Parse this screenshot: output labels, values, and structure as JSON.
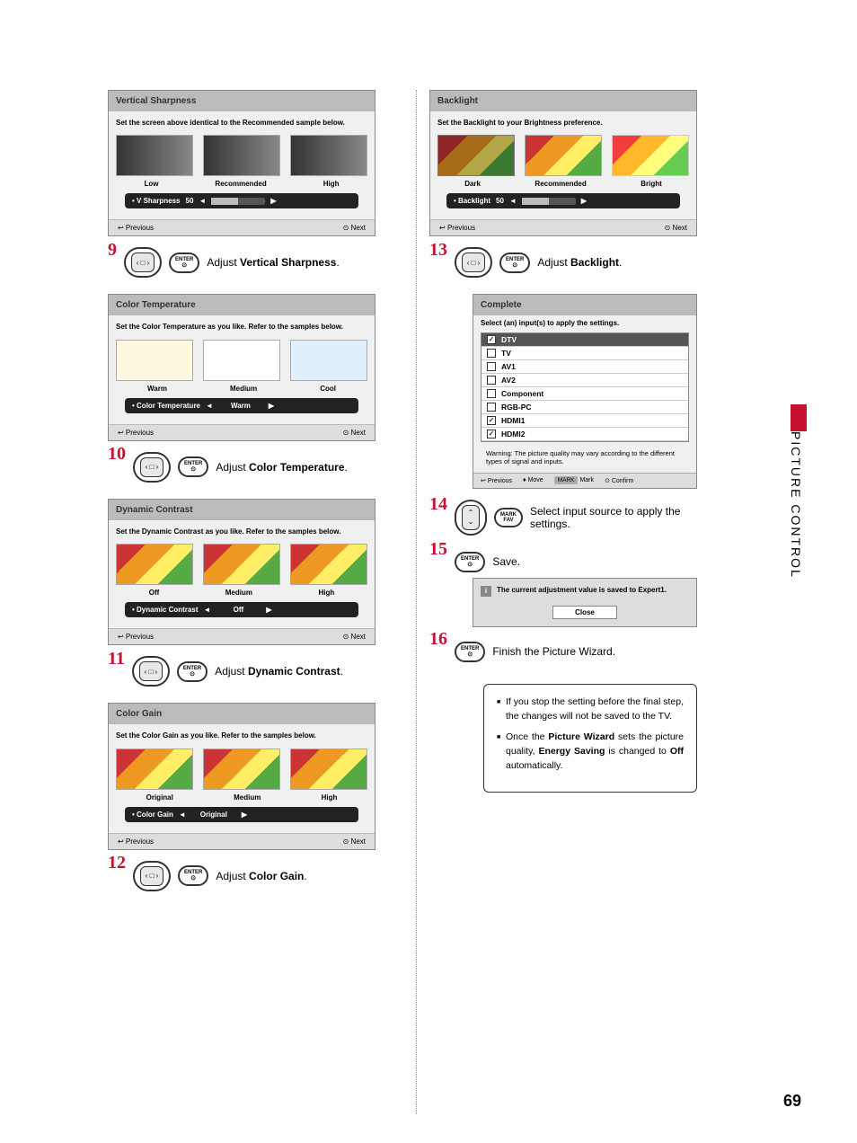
{
  "sideTab": "PICTURE CONTROL",
  "pageNum": "69",
  "leftSteps": [
    {
      "num": "9",
      "panel": {
        "title": "Vertical Sharpness",
        "desc": "Set the screen above identical to the Recommended sample below.",
        "swatchType": "gray",
        "labels": [
          "Low",
          "Recommended",
          "High"
        ],
        "sliderLabel": "• V Sharpness",
        "sliderValue": "50",
        "sliderMode": "bar",
        "footerPrev": "Previous",
        "footerNext": "Next"
      },
      "instruction": {
        "prefix": "Adjust ",
        "bold": "Vertical Sharpness",
        "suffix": "."
      },
      "buttons": [
        "dpad-h",
        "enter"
      ]
    },
    {
      "num": "10",
      "panel": {
        "title": "Color Temperature",
        "desc": "Set the Color Temperature as you like. Refer to the samples below.",
        "swatchType": "temp",
        "labels": [
          "Warm",
          "Medium",
          "Cool"
        ],
        "sliderLabel": "• Color Temperature",
        "sliderValue": "Warm",
        "sliderMode": "value",
        "footerPrev": "Previous",
        "footerNext": "Next"
      },
      "instruction": {
        "prefix": "Adjust ",
        "bold": "Color Temperature",
        "suffix": "."
      },
      "buttons": [
        "dpad-h",
        "enter"
      ]
    },
    {
      "num": "11",
      "panel": {
        "title": "Dynamic Contrast",
        "desc": "Set the Dynamic Contrast as you like. Refer to the samples below.",
        "swatchType": "fruit",
        "labels": [
          "Off",
          "Medium",
          "High"
        ],
        "sliderLabel": "• Dynamic Contrast",
        "sliderValue": "Off",
        "sliderMode": "value",
        "footerPrev": "Previous",
        "footerNext": "Next"
      },
      "instruction": {
        "prefix": "Adjust ",
        "bold": "Dynamic Contrast",
        "suffix": "."
      },
      "buttons": [
        "dpad-h",
        "enter"
      ]
    },
    {
      "num": "12",
      "panel": {
        "title": "Color Gain",
        "desc": "Set the Color Gain as you like. Refer to the samples below.",
        "swatchType": "fruit",
        "labels": [
          "Original",
          "Medium",
          "High"
        ],
        "sliderLabel": "• Color Gain",
        "sliderValue": "Original",
        "sliderMode": "value",
        "footerPrev": "Previous",
        "footerNext": "Next"
      },
      "instruction": {
        "prefix": "Adjust ",
        "bold": "Color Gain",
        "suffix": "."
      },
      "buttons": [
        "dpad-h",
        "enter"
      ]
    }
  ],
  "backlightPanel": {
    "title": "Backlight",
    "desc": "Set the Backlight to your Brightness preference.",
    "labels": [
      "Dark",
      "Recommended",
      "Bright"
    ],
    "sliderLabel": "• Backlight",
    "sliderValue": "50",
    "footerPrev": "Previous",
    "footerNext": "Next"
  },
  "step13": {
    "num": "13",
    "instruction": {
      "prefix": "Adjust ",
      "bold": "Backlight",
      "suffix": "."
    }
  },
  "completePanel": {
    "title": "Complete",
    "desc": "Select (an) input(s) to apply the settings.",
    "inputs": [
      {
        "label": "DTV",
        "checked": true,
        "hl": true
      },
      {
        "label": "TV",
        "checked": false,
        "hl": false
      },
      {
        "label": "AV1",
        "checked": false,
        "hl": false
      },
      {
        "label": "AV2",
        "checked": false,
        "hl": false
      },
      {
        "label": "Component",
        "checked": false,
        "hl": false
      },
      {
        "label": "RGB-PC",
        "checked": false,
        "hl": false
      },
      {
        "label": "HDMI1",
        "checked": true,
        "hl": false
      },
      {
        "label": "HDMI2",
        "checked": true,
        "hl": false
      }
    ],
    "warning": "Warning: The picture quality may vary according to the different types of signal and inputs.",
    "footer": {
      "prev": "Previous",
      "move": "Move",
      "markBtn": "MARK",
      "mark": "Mark",
      "confirm": "Confirm"
    }
  },
  "step14": {
    "num": "14",
    "markLabel": "MARK",
    "favLabel": "FAV",
    "text": "Select input source to apply the settings."
  },
  "step15": {
    "num": "15",
    "text": "Save.",
    "saveMsg": "The current adjustment value is saved to Expert1.",
    "closeBtn": "Close"
  },
  "step16": {
    "num": "16",
    "text": "Finish the Picture Wizard."
  },
  "notes": [
    {
      "parts": [
        {
          "t": "If you stop the setting before the final step, the changes will not be saved to the TV."
        }
      ]
    },
    {
      "parts": [
        {
          "t": "Once the "
        },
        {
          "b": "Picture Wizard"
        },
        {
          "t": " sets the picture quality, "
        },
        {
          "b": "Energy Saving"
        },
        {
          "t": " is changed to "
        },
        {
          "b": "Off"
        },
        {
          "t": " automatically."
        }
      ]
    }
  ],
  "enterLabel": "ENTER"
}
